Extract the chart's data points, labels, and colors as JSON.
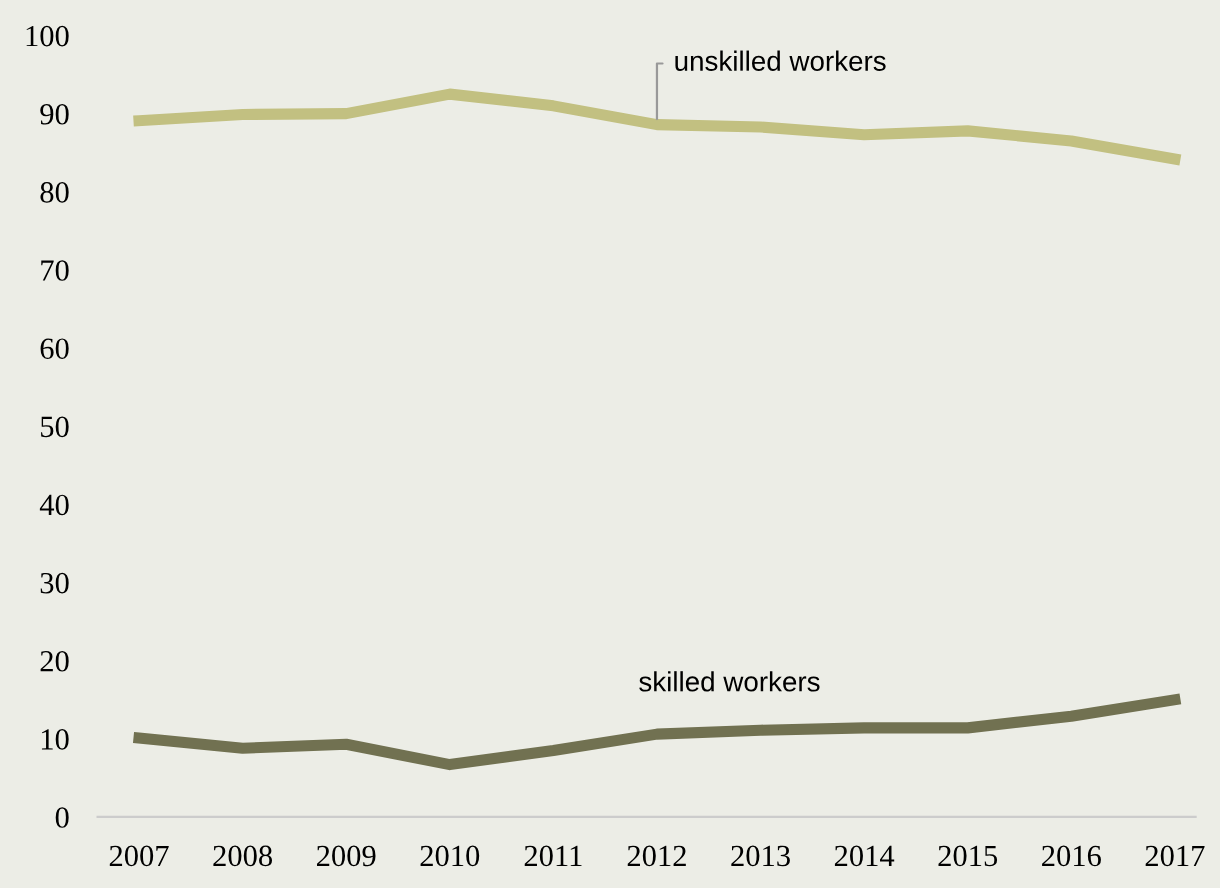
{
  "chart_data": {
    "type": "line",
    "categories": [
      "2007",
      "2008",
      "2009",
      "2010",
      "2011",
      "2012",
      "2013",
      "2014",
      "2015",
      "2016",
      "2017"
    ],
    "series": [
      {
        "name": "unskilled workers",
        "color": "#c2c081",
        "values": [
          89.1,
          89.9,
          90.0,
          92.5,
          91.0,
          88.6,
          88.3,
          87.3,
          87.8,
          86.5,
          84.2
        ]
      },
      {
        "name": "skilled workers",
        "color": "#717151",
        "values": [
          10.1,
          8.8,
          9.3,
          6.7,
          8.5,
          10.6,
          11.1,
          11.4,
          11.4,
          12.9,
          15.0
        ]
      }
    ],
    "ylim": [
      0,
      100
    ],
    "yticks": [
      0,
      10,
      20,
      30,
      40,
      50,
      60,
      70,
      80,
      90,
      100
    ],
    "grid": false,
    "legend": false,
    "marker": "none",
    "line_style": "solid"
  }
}
